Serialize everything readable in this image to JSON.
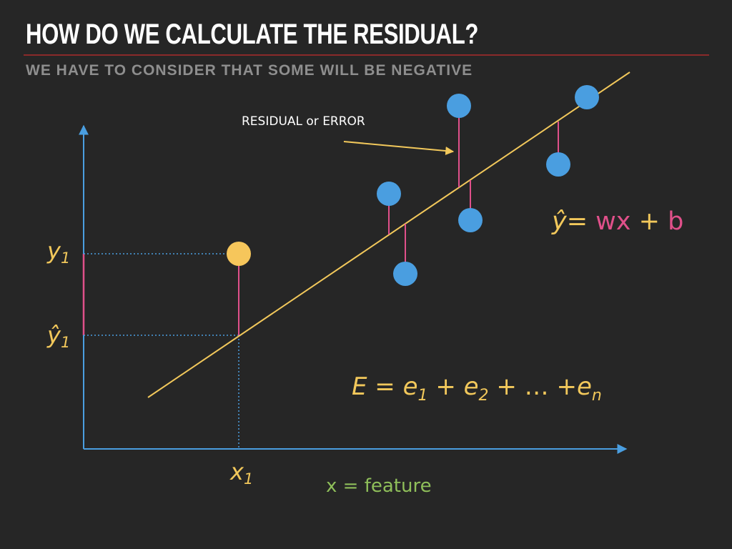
{
  "slide": {
    "title": "HOW DO WE CALCULATE THE RESIDUAL?",
    "subtitle": "WE HAVE TO CONSIDER THAT SOME WILL BE NEGATIVE"
  },
  "annotation": {
    "label": "RESIDUAL or ERROR"
  },
  "labels": {
    "y1": {
      "main": "y",
      "sub": "1"
    },
    "yhat1": {
      "main": "ŷ",
      "sub": "1"
    },
    "x1": {
      "main": "x",
      "sub": "1"
    },
    "xfeature": "x = feature"
  },
  "equation_line": {
    "yhat": "ŷ",
    "eq": "= ",
    "wx": "wx",
    "plus": " + ",
    "b": "b"
  },
  "equation_error": {
    "E": "E",
    "eq": " = ",
    "e": "e",
    "s1": "1",
    "plus": " + ",
    "s2": "2",
    "dots": " + … +",
    "sn": "n"
  },
  "colors": {
    "background": "#262626",
    "axis": "#4a9ee0",
    "regression_line": "#f2c85b",
    "residual": "#e0508a",
    "point_blue": "#4a9ee0",
    "point_yellow": "#f6c65b",
    "label_yellow": "#f2c85b",
    "feature_green": "#8fbf5a",
    "pink": "#e0508a"
  }
}
